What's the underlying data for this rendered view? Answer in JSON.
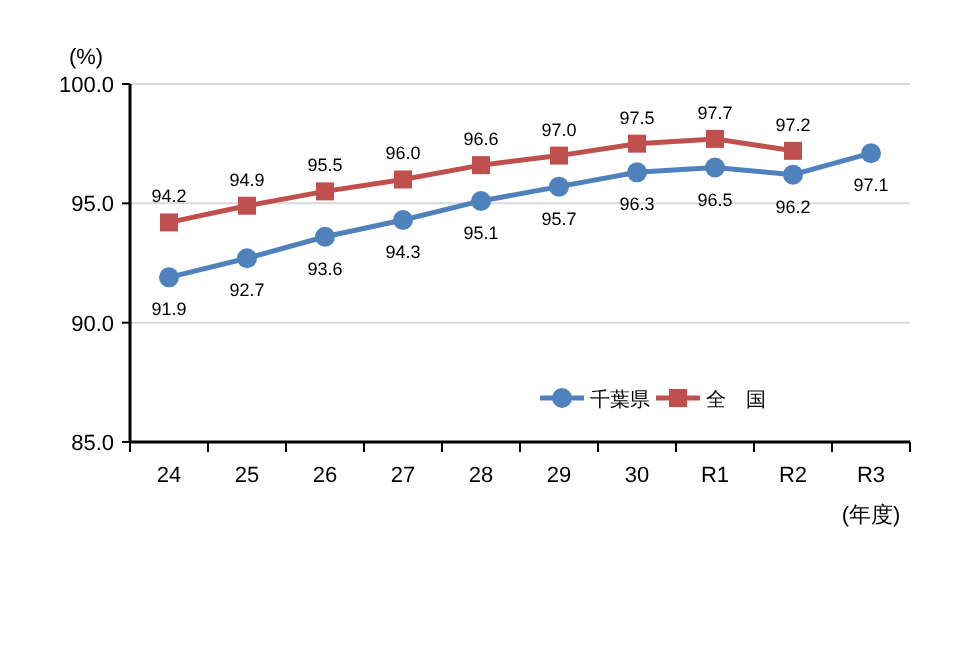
{
  "chart_data": {
    "type": "line",
    "categories": [
      "24",
      "25",
      "26",
      "27",
      "28",
      "29",
      "30",
      "R1",
      "R2",
      "R3"
    ],
    "series": [
      {
        "name": "千葉県",
        "color": "#4f81bd",
        "marker": "circle",
        "values": [
          91.9,
          92.7,
          93.6,
          94.3,
          95.1,
          95.7,
          96.3,
          96.5,
          96.2,
          97.1
        ],
        "value_labels": [
          "91.9",
          "92.7",
          "93.6",
          "94.3",
          "95.1",
          "95.7",
          "96.3",
          "96.5",
          "96.2",
          "97.1"
        ]
      },
      {
        "name": "全　国",
        "color": "#c0504d",
        "marker": "square",
        "values": [
          94.2,
          94.9,
          95.5,
          96.0,
          96.6,
          97.0,
          97.5,
          97.7,
          97.2,
          null
        ],
        "value_labels": [
          "94.2",
          "94.9",
          "95.5",
          "96.0",
          "96.6",
          "97.0",
          "97.5",
          "97.7",
          "97.2",
          null
        ]
      }
    ],
    "ylim": [
      85,
      100
    ],
    "yticks": [
      {
        "value": 85,
        "label": "85.0"
      },
      {
        "value": 90,
        "label": "90.0"
      },
      {
        "value": 95,
        "label": "95.0"
      },
      {
        "value": 100,
        "label": "100.0"
      }
    ],
    "ylabel": "(%)",
    "xlabel": "(年度)",
    "grid": "y",
    "legend": "bottom right"
  }
}
